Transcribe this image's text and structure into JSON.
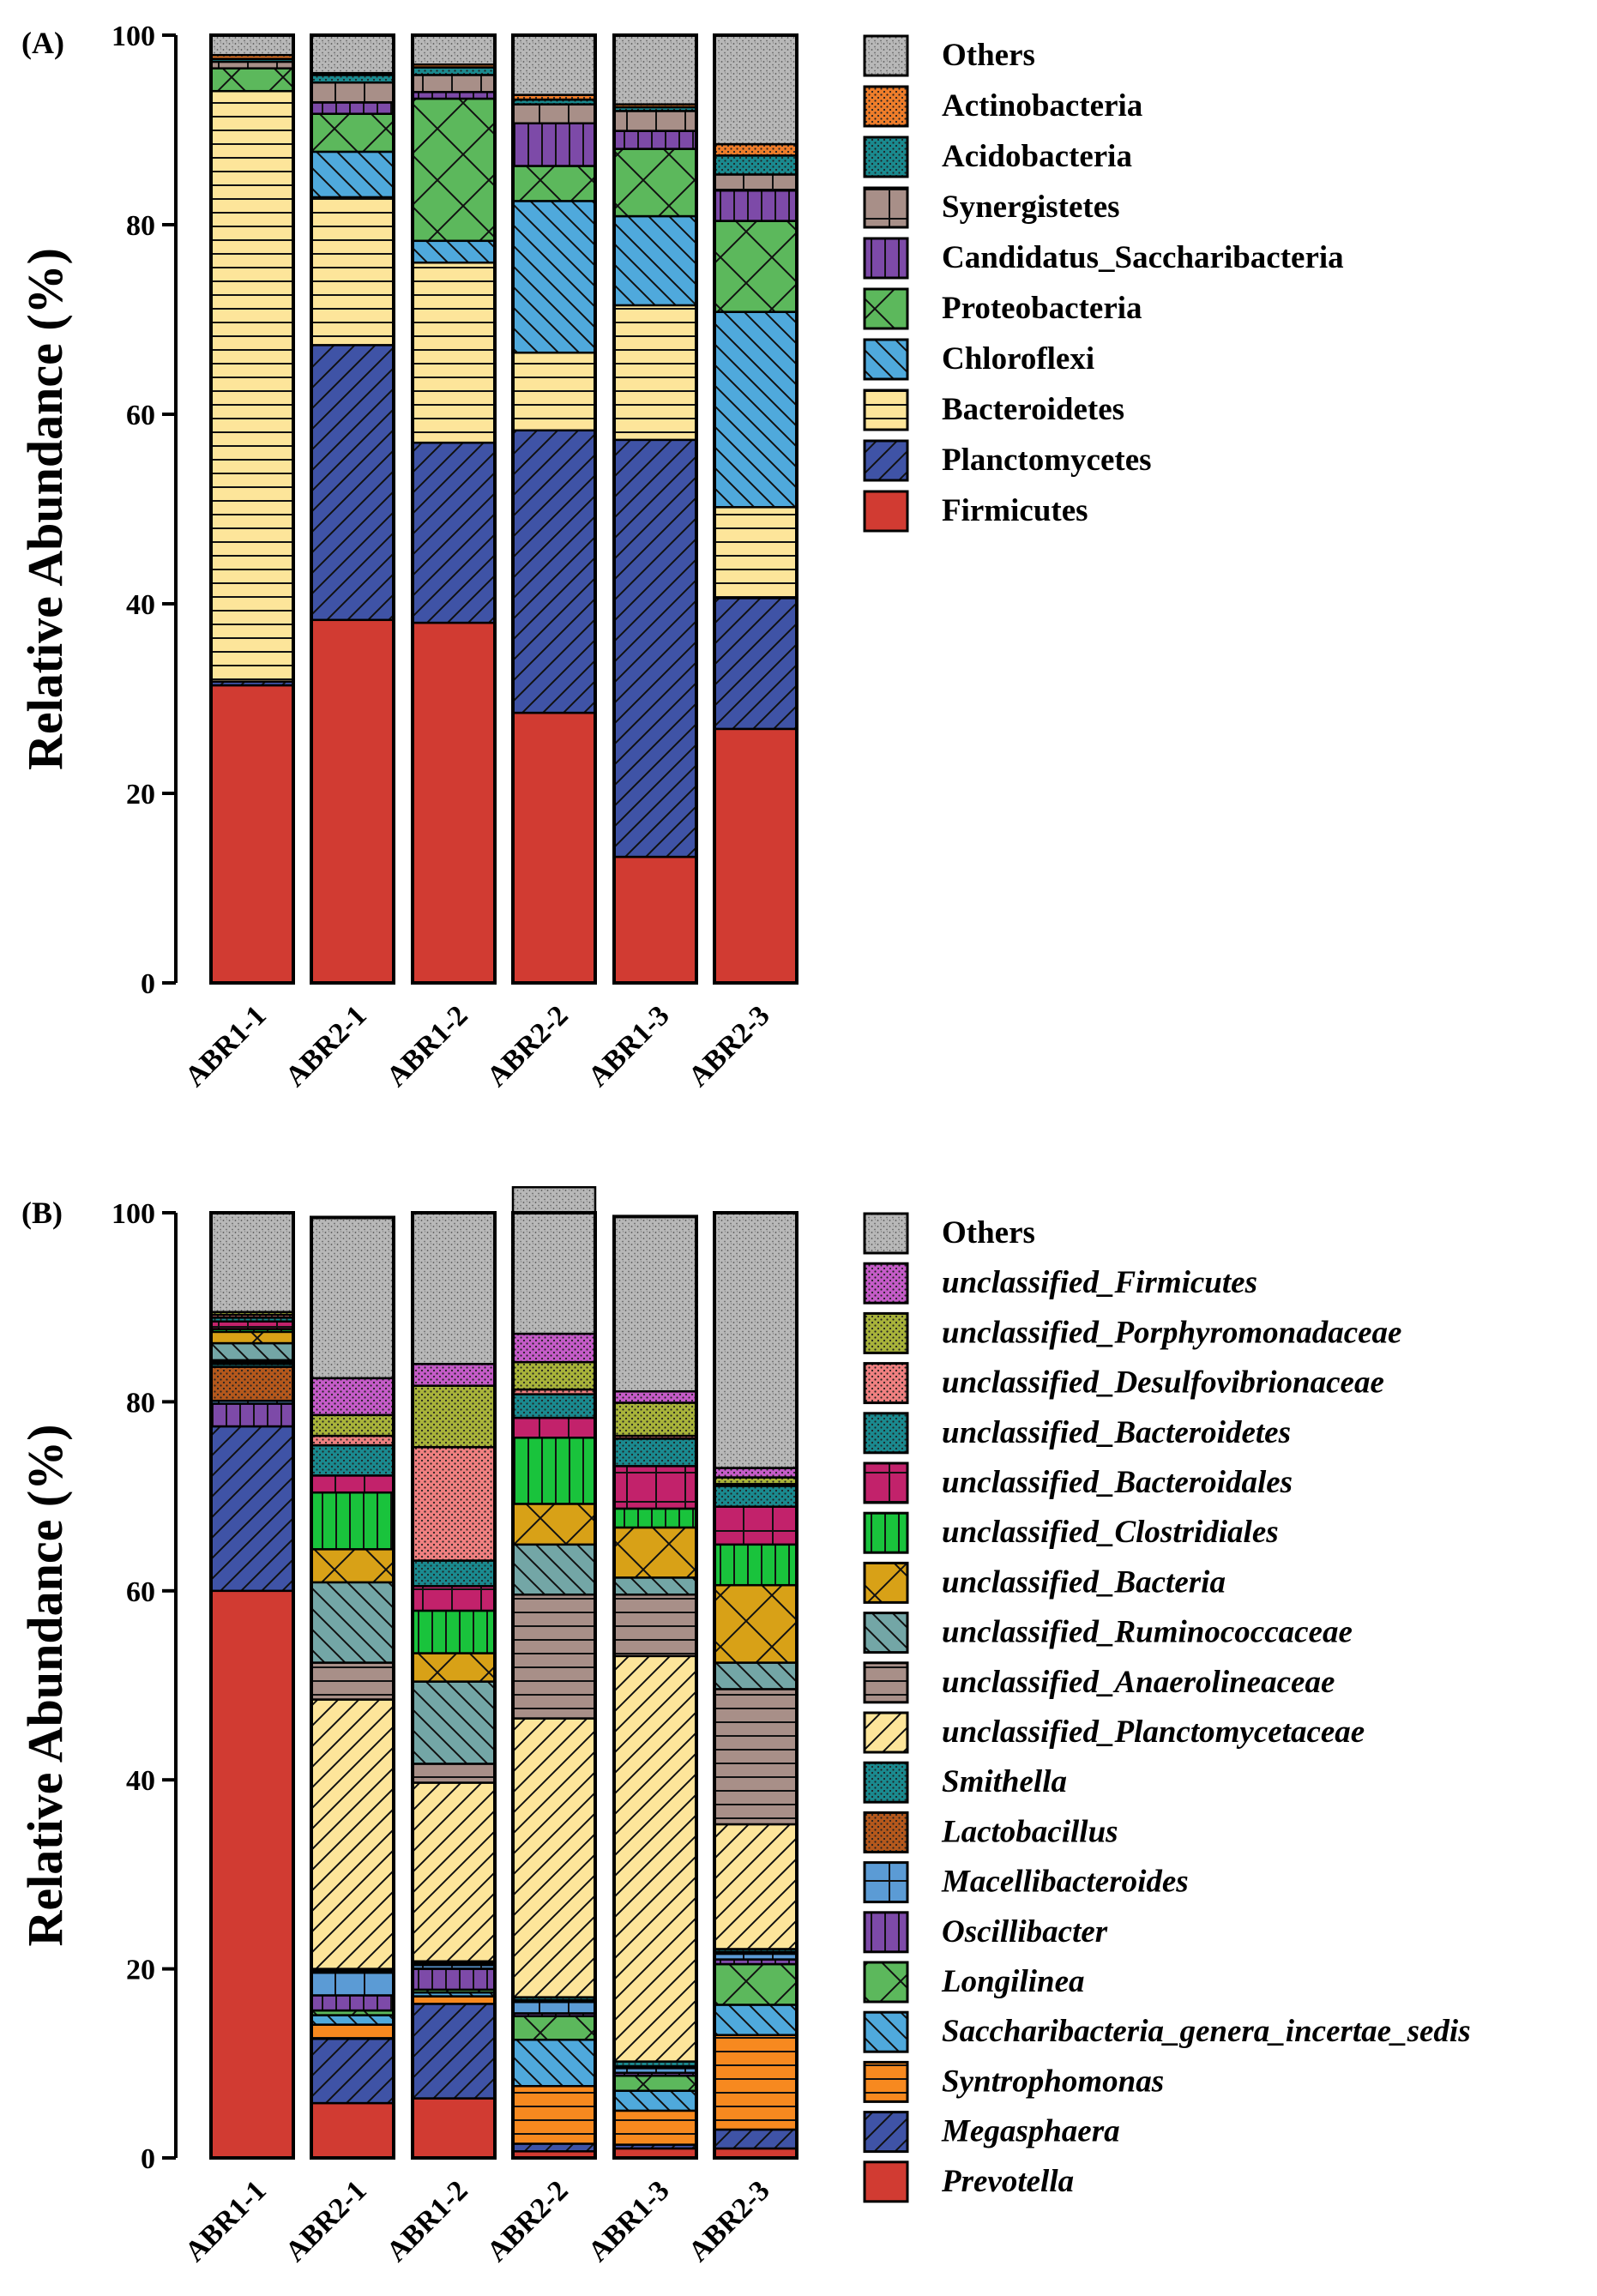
{
  "chart_data": [
    {
      "type": "stacked-bar",
      "panel_label": "(A)",
      "ylabel": "Relative Abundance (%)",
      "ylim": [
        0,
        100
      ],
      "yticks": [
        "0",
        "20",
        "40",
        "60",
        "80",
        "100"
      ],
      "categories": [
        "ABR1-1",
        "ABR2-1",
        "ABR1-2",
        "ABR2-2",
        "ABR1-3",
        "ABR2-3"
      ],
      "series": [
        {
          "name": "Firmicutes",
          "color": "#d13b32",
          "pattern": "solid",
          "italic": false,
          "values": [
            31.4,
            38.3,
            38.0,
            28.5,
            13.3,
            26.8
          ]
        },
        {
          "name": "Planctomycetes",
          "color": "#3f53a6",
          "pattern": "diag",
          "italic": false,
          "values": [
            0.4,
            29.0,
            19.0,
            29.8,
            44.0,
            13.8
          ]
        },
        {
          "name": "Bacteroidetes",
          "color": "#fde59a",
          "pattern": "hlines",
          "italic": false,
          "values": [
            62.3,
            15.6,
            19.0,
            8.2,
            14.2,
            9.6
          ]
        },
        {
          "name": "Chloroflexi",
          "color": "#4fa9dc",
          "pattern": "diag-back",
          "italic": false,
          "values": [
            0.0,
            4.8,
            2.3,
            16.0,
            9.4,
            20.6
          ]
        },
        {
          "name": "Proteobacteria",
          "color": "#5cb85c",
          "pattern": "cross",
          "italic": false,
          "values": [
            2.4,
            4.0,
            15.0,
            3.7,
            7.1,
            9.6
          ]
        },
        {
          "name": "Candidatus_Saccharibacteria",
          "color": "#7d4aa8",
          "pattern": "vlines",
          "italic": false,
          "values": [
            0.0,
            1.2,
            0.7,
            4.5,
            1.9,
            3.2
          ]
        },
        {
          "name": "Synergistetes",
          "color": "#a88f88",
          "pattern": "grid",
          "italic": false,
          "values": [
            0.7,
            2.1,
            1.8,
            2.0,
            2.1,
            1.7
          ]
        },
        {
          "name": "Acidobacteria",
          "color": "#1a8a8f",
          "pattern": "dots",
          "italic": false,
          "values": [
            0.3,
            0.8,
            0.8,
            0.5,
            0.4,
            2.0
          ]
        },
        {
          "name": "Actinobacteria",
          "color": "#ef7d2a",
          "pattern": "dots",
          "italic": false,
          "values": [
            0.4,
            0.2,
            0.3,
            0.5,
            0.3,
            1.2
          ]
        },
        {
          "name": "Others",
          "color": "#b8b8b8",
          "pattern": "speckle",
          "italic": false,
          "values": [
            2.1,
            4.0,
            3.1,
            6.3,
            7.3,
            11.5
          ]
        }
      ]
    },
    {
      "type": "stacked-bar",
      "panel_label": "(B)",
      "ylabel": "Relative Abundance (%)",
      "ylim": [
        0,
        100
      ],
      "yticks": [
        "0",
        "20",
        "40",
        "60",
        "80",
        "100"
      ],
      "categories": [
        "ABR1-1",
        "ABR2-1",
        "ABR1-2",
        "ABR2-2",
        "ABR1-3",
        "ABR2-3"
      ],
      "series": [
        {
          "name": "Prevotella",
          "color": "#d13b32",
          "pattern": "solid",
          "italic": true,
          "values": [
            60.0,
            5.8,
            6.3,
            0.7,
            1.0,
            1.0
          ]
        },
        {
          "name": "Megasphaera",
          "color": "#3f53a6",
          "pattern": "diag",
          "italic": true,
          "values": [
            17.4,
            6.8,
            10.0,
            0.8,
            0.4,
            2.0
          ]
        },
        {
          "name": "Syntrophomonas",
          "color": "#f7891f",
          "pattern": "hlines",
          "italic": true,
          "values": [
            0.0,
            1.5,
            0.8,
            6.1,
            3.6,
            10.0
          ]
        },
        {
          "name": "Saccharibacteria_genera_incertae_sedis",
          "color": "#4fa9dc",
          "pattern": "diag-back",
          "italic": true,
          "values": [
            0.0,
            1.0,
            0.4,
            4.9,
            2.1,
            3.2
          ]
        },
        {
          "name": "Longilinea",
          "color": "#5cb85c",
          "pattern": "cross",
          "italic": true,
          "values": [
            0.0,
            0.5,
            0.3,
            2.5,
            1.6,
            4.3
          ]
        },
        {
          "name": "Oscillibacter",
          "color": "#7d4aa8",
          "pattern": "vlines",
          "italic": true,
          "values": [
            2.4,
            1.6,
            2.2,
            0.3,
            0.3,
            0.5
          ]
        },
        {
          "name": "Macellibacteroides",
          "color": "#5b9bd5",
          "pattern": "grid",
          "italic": true,
          "values": [
            0.3,
            2.4,
            0.4,
            1.2,
            0.5,
            0.6
          ]
        },
        {
          "name": "Lactobacillus",
          "color": "#b5581c",
          "pattern": "dots",
          "italic": true,
          "values": [
            3.6,
            0.2,
            0.2,
            0.2,
            0.2,
            0.2
          ]
        },
        {
          "name": "Smithella",
          "color": "#1a8a8f",
          "pattern": "dots",
          "italic": true,
          "values": [
            0.3,
            0.2,
            0.2,
            0.3,
            0.5,
            0.3
          ]
        },
        {
          "name": "unclassified_Planctomycetaceae",
          "color": "#fde59a",
          "pattern": "diag",
          "italic": true,
          "values": [
            0.2,
            28.5,
            18.9,
            29.5,
            42.9,
            13.2
          ]
        },
        {
          "name": "unclassified_Anaerolineaceae",
          "color": "#a88f88",
          "pattern": "hlines",
          "italic": true,
          "values": [
            0.2,
            3.9,
            2.0,
            13.1,
            6.5,
            14.3
          ]
        },
        {
          "name": "unclassified_Ruminococcaceae",
          "color": "#73a6a6",
          "pattern": "diag-back",
          "italic": true,
          "values": [
            1.8,
            8.5,
            8.7,
            5.3,
            1.8,
            2.8
          ]
        },
        {
          "name": "unclassified_Bacteria",
          "color": "#d8a117",
          "pattern": "cross",
          "italic": true,
          "values": [
            1.2,
            3.5,
            3.0,
            4.3,
            5.3,
            8.2
          ]
        },
        {
          "name": "unclassified_Clostridiales",
          "color": "#19c33c",
          "pattern": "vlines",
          "italic": true,
          "values": [
            0.3,
            6.0,
            4.5,
            7.0,
            2.0,
            4.3
          ]
        },
        {
          "name": "unclassified_Bacteroidales",
          "color": "#c2226b",
          "pattern": "grid",
          "italic": true,
          "values": [
            0.8,
            1.8,
            2.6,
            2.1,
            4.5,
            4.0
          ]
        },
        {
          "name": "unclassified_Bacteroidetes",
          "color": "#1a8a8f",
          "pattern": "dots",
          "italic": true,
          "values": [
            0.4,
            3.2,
            2.7,
            2.5,
            2.9,
            2.2
          ]
        },
        {
          "name": "unclassified_Desulfovibrionaceae",
          "color": "#f08080",
          "pattern": "dots",
          "italic": true,
          "values": [
            0.3,
            1.0,
            12.0,
            0.5,
            0.3,
            0.2
          ]
        },
        {
          "name": "unclassified_Porphyromonadaceae",
          "color": "#a8b33a",
          "pattern": "dots",
          "italic": true,
          "values": [
            0.3,
            2.2,
            6.5,
            2.9,
            3.5,
            0.7
          ]
        },
        {
          "name": "unclassified_Firmicutes",
          "color": "#c55bc8",
          "pattern": "dots",
          "italic": true,
          "values": [
            0.0,
            3.9,
            2.3,
            3.0,
            1.2,
            1.0
          ]
        },
        {
          "name": "Others",
          "color": "#b8b8b8",
          "pattern": "speckle",
          "italic": false,
          "values": [
            10.5,
            17.0,
            16.0,
            15.5,
            18.5,
            27.0
          ]
        }
      ]
    }
  ]
}
